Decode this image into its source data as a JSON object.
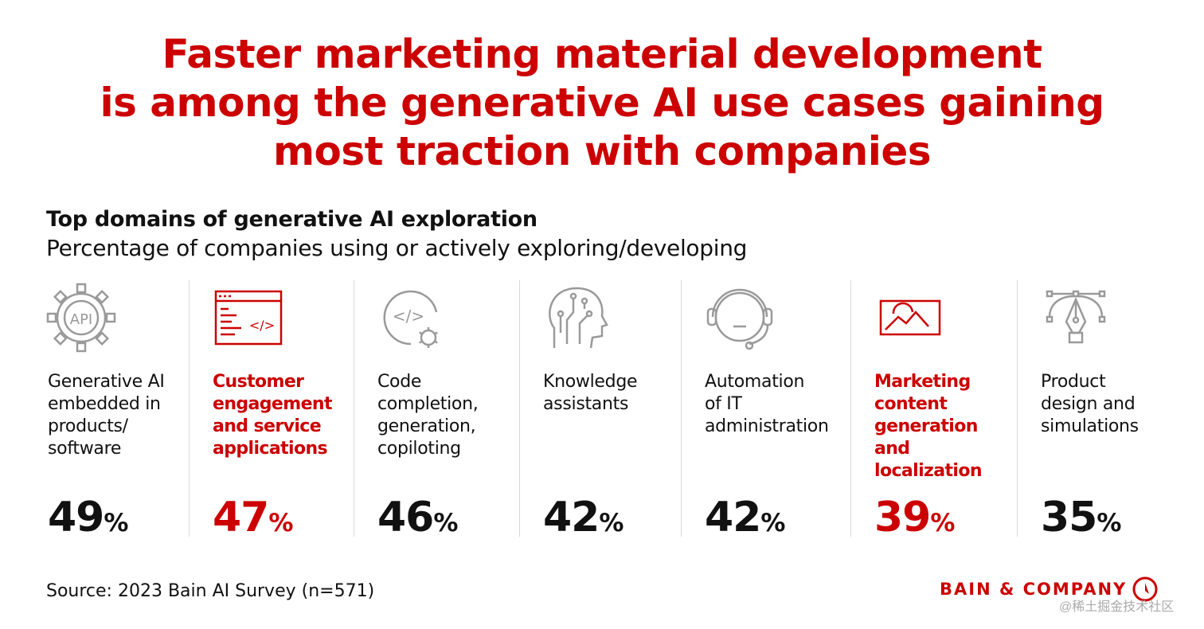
{
  "title_lines": [
    "Faster marketing material development",
    "is among the generative AI use cases gaining",
    "most traction with companies"
  ],
  "chart_data": {
    "type": "bar",
    "title": "Top domains of generative AI exploration",
    "subtitle": "Percentage of companies using or actively exploring/developing",
    "unit": "%",
    "categories": [
      {
        "label": [
          "Generative AI",
          "embedded in",
          "products/",
          "software"
        ],
        "value": 49,
        "highlight": false,
        "icon": "api-gear-icon"
      },
      {
        "label": [
          "Customer",
          "engagement",
          "and service",
          "applications"
        ],
        "value": 47,
        "highlight": true,
        "icon": "code-window-icon"
      },
      {
        "label": [
          "Code",
          "completion,",
          "generation,",
          "copiloting"
        ],
        "value": 46,
        "highlight": false,
        "icon": "code-gear-icon"
      },
      {
        "label": [
          "Knowledge",
          "assistants"
        ],
        "value": 42,
        "highlight": false,
        "icon": "ai-head-icon"
      },
      {
        "label": [
          "Automation",
          "of IT",
          "administration"
        ],
        "value": 42,
        "highlight": false,
        "icon": "headset-icon"
      },
      {
        "label": [
          "Marketing",
          "content",
          "generation",
          "and",
          "localization"
        ],
        "value": 39,
        "highlight": true,
        "icon": "image-frame-icon"
      },
      {
        "label": [
          "Product",
          "design and",
          "simulations"
        ],
        "value": 35,
        "highlight": false,
        "icon": "pen-tool-icon"
      }
    ]
  },
  "source": "Source: 2023 Bain AI Survey (n=571)",
  "brand": "BAIN & COMPANY",
  "watermark": "@稀土掘金技术社区",
  "colors": {
    "accent": "#cc0000",
    "text": "#111111",
    "icon_gray": "#9a9a9a",
    "divider": "#d8d8d8"
  }
}
